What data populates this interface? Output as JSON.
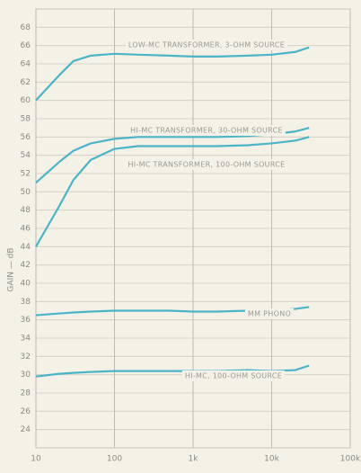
{
  "chart_data": {
    "type": "line",
    "y_label": "GAIN — dB",
    "x": [
      10,
      20,
      30,
      50,
      100,
      200,
      500,
      1000,
      2000,
      5000,
      10000,
      20000,
      30000
    ],
    "xlim": [
      10,
      100000
    ],
    "log_x": true,
    "xticks": [
      10,
      100,
      {
        "value": 1000,
        "label": "1k"
      },
      {
        "value": 10000,
        "label": "10k"
      },
      {
        "value": 100000,
        "label": "100k"
      }
    ],
    "ylim": [
      22,
      70
    ],
    "yticks": [
      24,
      26,
      28,
      30,
      32,
      34,
      36,
      38,
      40,
      42,
      44,
      46,
      48,
      50,
      52,
      54,
      56,
      58,
      60,
      62,
      64,
      66,
      68
    ],
    "grid": true,
    "series": [
      {
        "name": "LOW-MC TRANSFORMER, 3-OHM SOURCE",
        "color": "#4cb4c9",
        "values": [
          60,
          62.8,
          64.3,
          64.9,
          65.1,
          65.0,
          64.9,
          64.8,
          64.8,
          64.9,
          65.0,
          65.3,
          65.8
        ]
      },
      {
        "name": "HI-MC TRANSFORMER, 30-OHM SOURCE",
        "color": "#4cb4c9",
        "values": [
          51,
          53.3,
          54.5,
          55.3,
          55.8,
          56,
          56,
          56,
          56,
          56.1,
          56.3,
          56.6,
          57
        ]
      },
      {
        "name": "HI-MC TRANSFORMER, 100-OHM SOURCE",
        "color": "#4cb4c9",
        "values": [
          44,
          48.5,
          51.3,
          53.5,
          54.7,
          55,
          55,
          55,
          55,
          55.1,
          55.3,
          55.6,
          56
        ]
      },
      {
        "name": "MM PHONO",
        "color": "#4cb4c9",
        "values": [
          36.5,
          36.7,
          36.8,
          36.9,
          37,
          37,
          37,
          36.9,
          36.9,
          37,
          37,
          37.2,
          37.4
        ]
      },
      {
        "name": "HI-MC, 100-OHM SOURCE",
        "color": "#4cb4c9",
        "values": [
          29.8,
          30.1,
          30.2,
          30.3,
          30.4,
          30.4,
          30.4,
          30.4,
          30.4,
          30.5,
          30.4,
          30.5,
          31
        ]
      }
    ]
  }
}
